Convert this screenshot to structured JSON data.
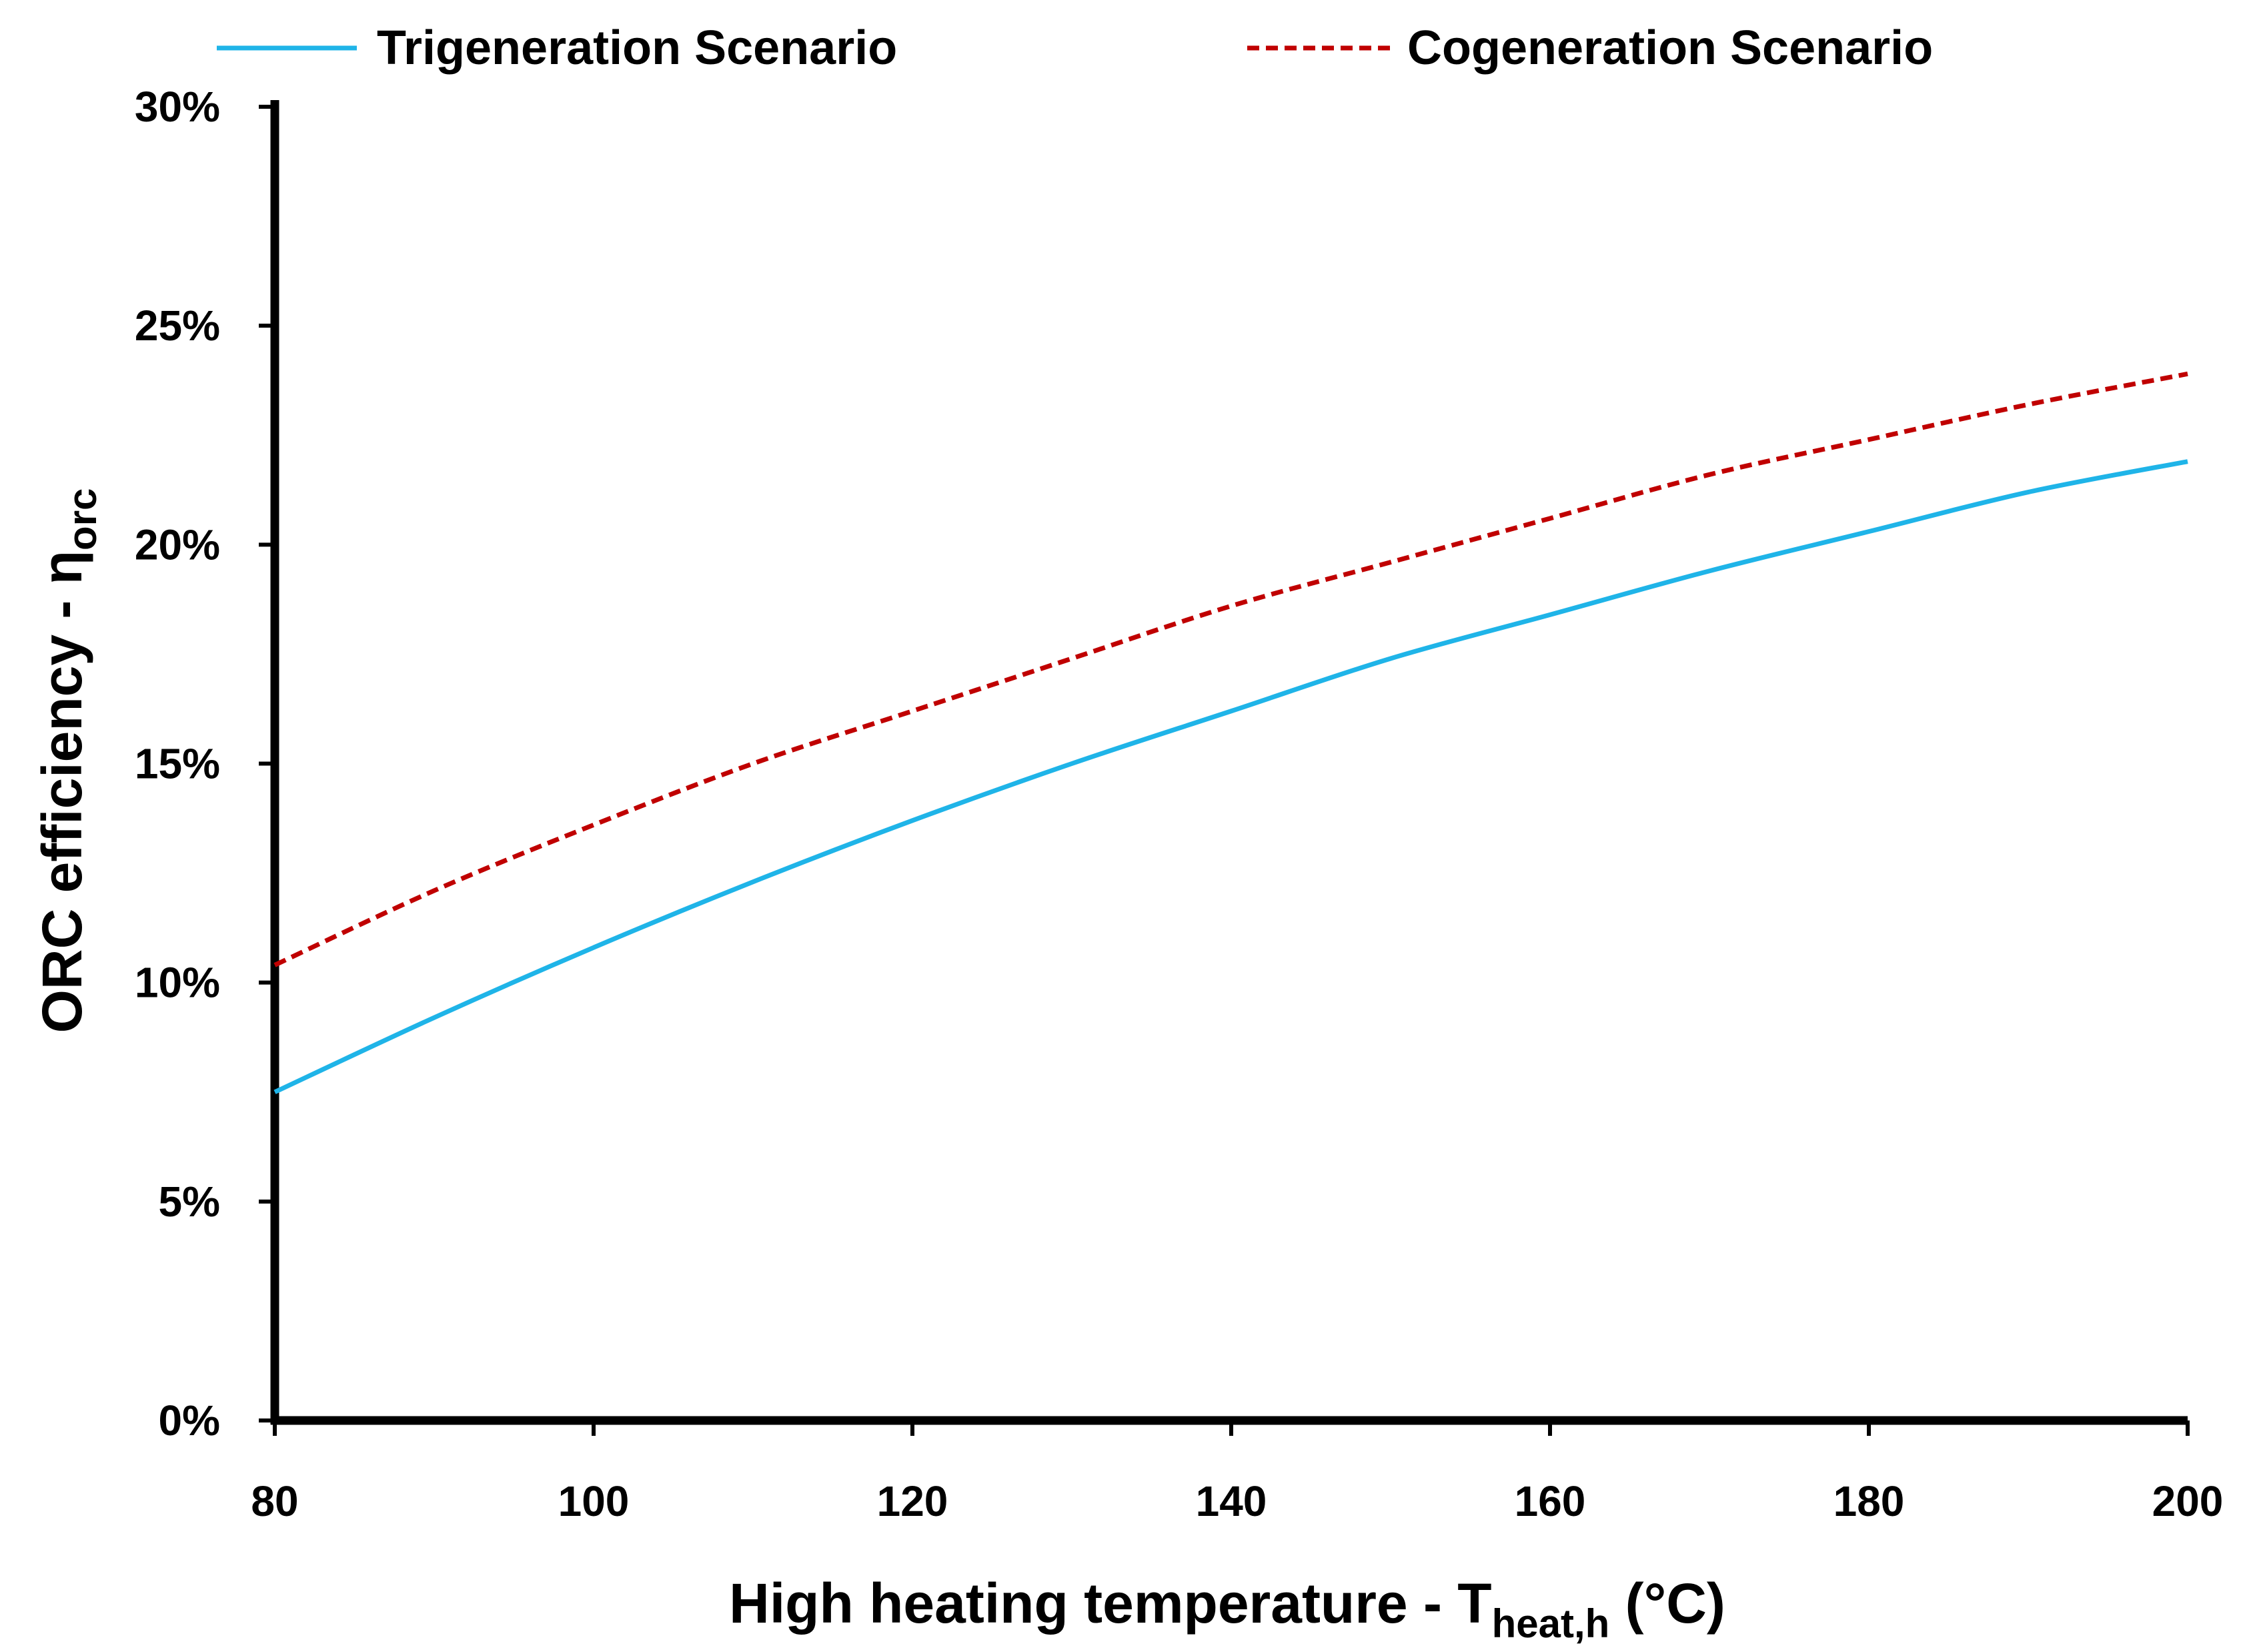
{
  "chart_data": {
    "type": "line",
    "title": "",
    "xlabel": {
      "main": "High heating temperature - T",
      "subscript": "heat,h",
      "suffix": " (°C)"
    },
    "ylabel": {
      "main": "ORC efficiency - η",
      "subscript": "orc"
    },
    "xlim": [
      80,
      200
    ],
    "ylim": [
      0,
      0.3
    ],
    "x_ticks": [
      80,
      100,
      120,
      140,
      160,
      180,
      200
    ],
    "x_tick_labels": [
      "80",
      "100",
      "120",
      "140",
      "160",
      "180",
      "200"
    ],
    "y_ticks": [
      0,
      0.05,
      0.1,
      0.15,
      0.2,
      0.25,
      0.3
    ],
    "y_tick_labels": [
      "0%",
      "5%",
      "10%",
      "15%",
      "20%",
      "25%",
      "30%"
    ],
    "grid": false,
    "legend_position": "top",
    "x": [
      80,
      90,
      100,
      110,
      120,
      130,
      140,
      150,
      160,
      170,
      180,
      190,
      200
    ],
    "series": [
      {
        "name": "Trigeneration Scenario",
        "color": "#1fb4e8",
        "dash": "solid",
        "values": [
          0.075,
          0.092,
          0.108,
          0.123,
          0.137,
          0.15,
          0.162,
          0.174,
          0.184,
          0.194,
          0.203,
          0.212,
          0.219
        ]
      },
      {
        "name": "Cogeneration Scenario",
        "color": "#c00000",
        "dash": "dashed",
        "values": [
          0.104,
          0.121,
          0.136,
          0.15,
          0.162,
          0.174,
          0.186,
          0.196,
          0.206,
          0.216,
          0.224,
          0.232,
          0.239
        ]
      }
    ]
  }
}
